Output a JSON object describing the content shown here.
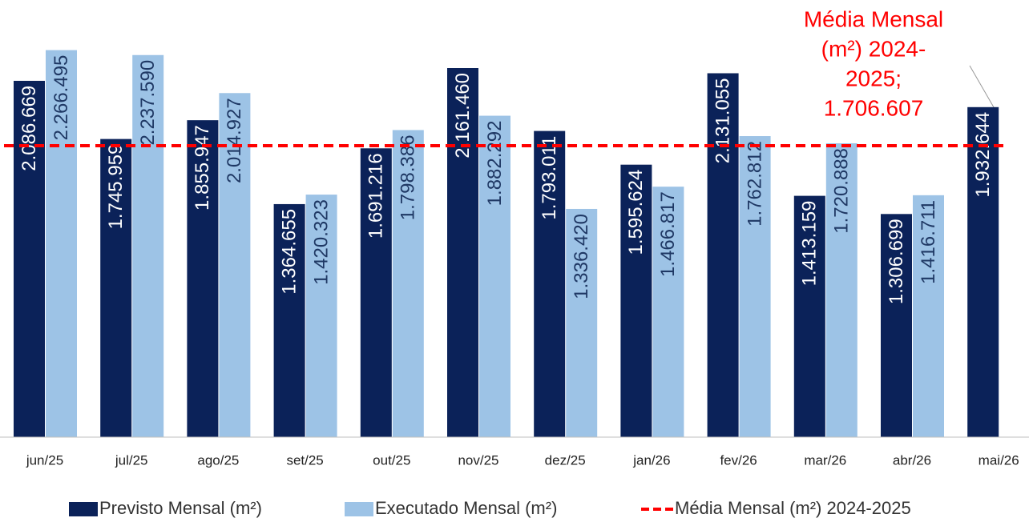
{
  "chart_data": {
    "type": "bar",
    "categories": [
      "jun/25",
      "jul/25",
      "ago/25",
      "set/25",
      "out/25",
      "nov/25",
      "dez/25",
      "jan/26",
      "fev/26",
      "mar/26",
      "abr/26",
      "mai/26"
    ],
    "series": [
      {
        "name": "Previsto Mensal (m²)",
        "color": "#0b2259",
        "label_color": "#ffffff",
        "values": [
          2086669,
          1745959,
          1855947,
          1364655,
          1691216,
          2161460,
          1793011,
          1595624,
          2131055,
          1413159,
          1306699,
          1932644
        ],
        "value_labels": [
          "2.086.669",
          "1.745.959",
          "1.855.947",
          "1.364.655",
          "1.691.216",
          "2.161.460",
          "1.793.011",
          "1.595.624",
          "2.131.055",
          "1.413.159",
          "1.306.699",
          "1.932.644"
        ]
      },
      {
        "name": "Executado Mensal (m²)",
        "color": "#9dc3e6",
        "label_color": "#1f3864",
        "values": [
          2266495,
          2237590,
          2014927,
          1420323,
          1798386,
          1882292,
          1336420,
          1466817,
          1762812,
          1720888,
          1416711,
          null
        ],
        "value_labels": [
          "2.266.495",
          "2.237.590",
          "2.014.927",
          "1.420.323",
          "1.798.386",
          "1.882.292",
          "1.336.420",
          "1.466.817",
          "1.762.812",
          "1.720.888",
          "1.416.711",
          null
        ]
      }
    ],
    "reference_line": {
      "name": "Média Mensal (m²) 2024-2025",
      "value": 1706607,
      "color": "#ff0000",
      "annotation_lines": [
        "Média Mensal",
        "(m²) 2024-",
        "2025;",
        "1.706.607"
      ]
    },
    "ylim": [
      0,
      2560000
    ],
    "legend": "bottom"
  }
}
